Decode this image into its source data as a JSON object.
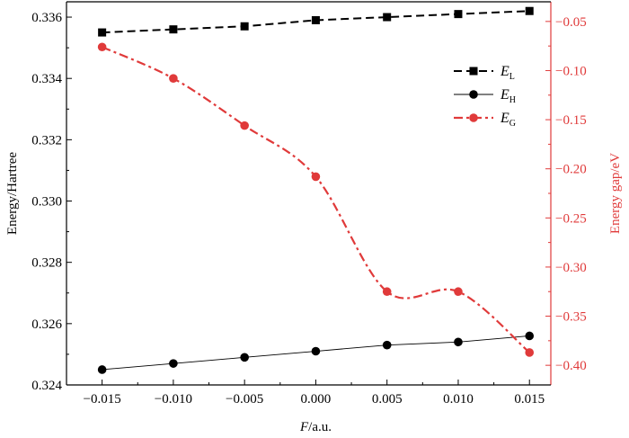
{
  "chart_data": {
    "type": "line",
    "xlabel_italic": "F",
    "xlabel_rest": "/a.u.",
    "ylabel_left": "Energy/Hartree",
    "ylabel_right": "Energy gap/eV",
    "x": [
      -0.015,
      -0.01,
      -0.005,
      0.0,
      0.005,
      0.01,
      0.015
    ],
    "xlim": [
      -0.0175,
      0.0165
    ],
    "ylim_left": [
      0.324,
      0.3365
    ],
    "ylim_right": [
      -0.42,
      -0.03
    ],
    "x_ticks": [
      -0.015,
      -0.01,
      -0.005,
      0.0,
      0.005,
      0.01,
      0.015
    ],
    "x_tick_labels": [
      "−0.015",
      "−0.010",
      "−0.005",
      "0.000",
      "0.005",
      "0.010",
      "0.015"
    ],
    "y_left_ticks": [
      0.324,
      0.326,
      0.328,
      0.33,
      0.332,
      0.334,
      0.336
    ],
    "y_left_tick_labels": [
      "0.324",
      "0.326",
      "0.328",
      "0.330",
      "0.332",
      "0.334",
      "0.336"
    ],
    "y_right_ticks": [
      -0.05,
      -0.1,
      -0.15,
      -0.2,
      -0.25,
      -0.3,
      -0.35,
      -0.4
    ],
    "y_right_tick_labels": [
      "−0.05",
      "−0.10",
      "−0.15",
      "−0.20",
      "−0.25",
      "−0.30",
      "−0.35",
      "−0.40"
    ],
    "grid": false,
    "legend_position": "upper-right",
    "series": [
      {
        "name": "E",
        "subscript": "L",
        "axis": "left",
        "values": [
          0.3355,
          0.3356,
          0.3357,
          0.3359,
          0.336,
          0.3361,
          0.3362
        ],
        "color": "#000000",
        "marker": "square",
        "line": "dashed"
      },
      {
        "name": "E",
        "subscript": "H",
        "axis": "left",
        "values": [
          0.3245,
          0.3247,
          0.3249,
          0.3251,
          0.3253,
          0.3254,
          0.3256
        ],
        "color": "#000000",
        "marker": "circle",
        "line": "solid"
      },
      {
        "name": "E",
        "subscript": "G",
        "axis": "right",
        "values": [
          -0.076,
          -0.108,
          -0.156,
          -0.208,
          -0.325,
          -0.325,
          -0.387
        ],
        "color": "#e03a3a",
        "marker": "circle",
        "line": "dashdot"
      }
    ]
  }
}
